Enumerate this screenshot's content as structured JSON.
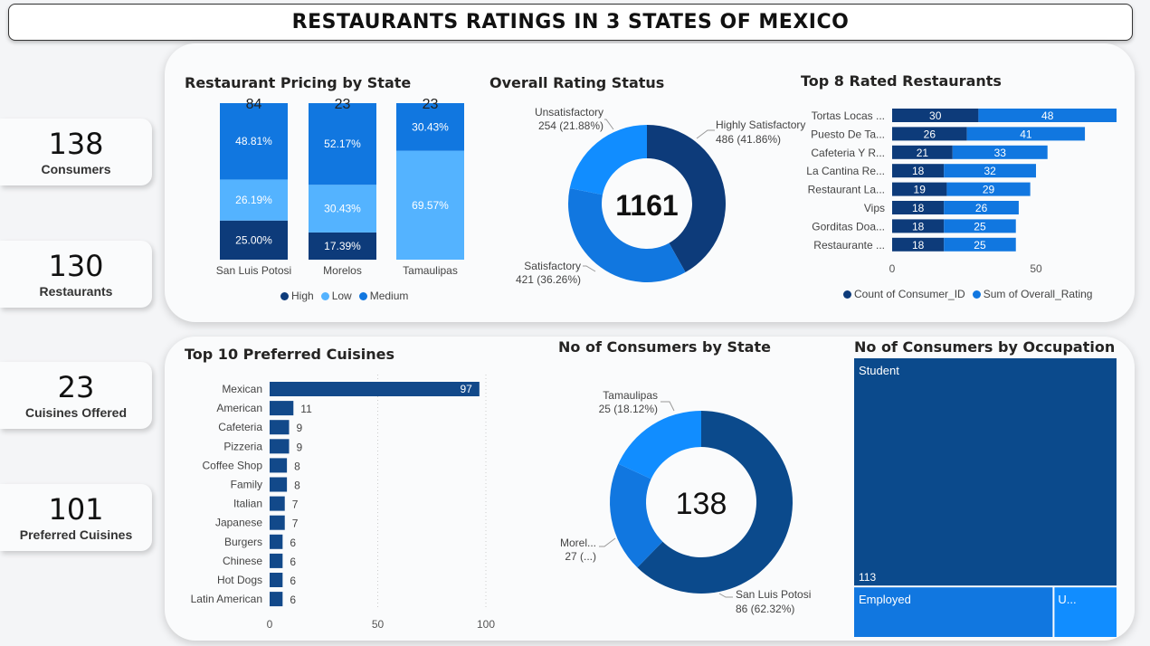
{
  "page": {
    "title": "RESTAURANTS RATINGS IN 3 STATES OF MEXICO"
  },
  "kpis": [
    {
      "value": "138",
      "label": "Consumers"
    },
    {
      "value": "130",
      "label": "Restaurants"
    },
    {
      "value": "23",
      "label": "Cuisines Offered"
    },
    {
      "value": "101",
      "label": "Preferred Cuisines"
    }
  ],
  "colors": {
    "high": "#0d3b7a",
    "low": "#54b3ff",
    "medium": "#1177e0",
    "dark": "#0b4a8c",
    "bar": "#12498a",
    "light": "#118dff"
  },
  "chart_data": [
    {
      "type": "bar",
      "title": "Restaurant Pricing by State",
      "categories": [
        "San Luis Potosi",
        "Morelos",
        "Tamaulipas"
      ],
      "totals": [
        "84",
        "23",
        "23"
      ],
      "series": [
        {
          "name": "High",
          "values": [
            25.0,
            17.39,
            0
          ],
          "labels": [
            "25.00%",
            "17.39%",
            ""
          ]
        },
        {
          "name": "Low",
          "values": [
            26.19,
            30.43,
            69.57
          ],
          "labels": [
            "26.19%",
            "30.43%",
            "69.57%"
          ]
        },
        {
          "name": "Medium",
          "values": [
            48.81,
            52.17,
            30.43
          ],
          "labels": [
            "48.81%",
            "52.17%",
            "30.43%"
          ]
        }
      ]
    },
    {
      "type": "pie",
      "title": "Overall Rating Status",
      "center_label": "1161",
      "slices": [
        {
          "name": "Highly Satisfactory",
          "value": 486,
          "label": "486 (41.86%)"
        },
        {
          "name": "Satisfactory",
          "value": 421,
          "label": "421 (36.26%)"
        },
        {
          "name": "Unsatisfactory",
          "value": 254,
          "label": "254 (21.88%)"
        }
      ]
    },
    {
      "type": "bar",
      "title": "Top 8 Rated Restaurants",
      "categories": [
        "Tortas Locas ...",
        "Puesto De Ta...",
        "Cafeteria Y R...",
        "La Cantina Re...",
        "Restaurant La...",
        "Vips",
        "Gorditas Doa...",
        "Restaurante ..."
      ],
      "series": [
        {
          "name": "Count of Consumer_ID",
          "values": [
            30,
            26,
            21,
            18,
            19,
            18,
            18,
            18
          ]
        },
        {
          "name": "Sum of Overall_Rating",
          "values": [
            48,
            41,
            33,
            32,
            29,
            26,
            25,
            25
          ]
        }
      ],
      "x_ticks": [
        "0",
        "50"
      ]
    },
    {
      "type": "bar",
      "title": "Top 10 Preferred Cuisines",
      "categories": [
        "Mexican",
        "American",
        "Cafeteria",
        "Pizzeria",
        "Coffee Shop",
        "Family",
        "Italian",
        "Japanese",
        "Burgers",
        "Chinese",
        "Hot Dogs",
        "Latin American"
      ],
      "values": [
        97,
        11,
        9,
        9,
        8,
        8,
        7,
        7,
        6,
        6,
        6,
        6
      ],
      "x_ticks": [
        "0",
        "50",
        "100"
      ],
      "xlim": [
        0,
        100
      ]
    },
    {
      "type": "pie",
      "title": "No of Consumers by State",
      "center_label": "138",
      "slices": [
        {
          "name": "San Luis Potosi",
          "value": 86,
          "label": "86 (62.32%)"
        },
        {
          "name": "Morel...",
          "value": 27,
          "label": "27 (...)"
        },
        {
          "name": "Tamaulipas",
          "value": 25,
          "label": "25 (18.12%)"
        }
      ]
    },
    {
      "type": "treemap",
      "title": "No of Consumers by Occupation",
      "items": [
        {
          "name": "Student",
          "value": 113,
          "value_label": "113"
        },
        {
          "name": "Employed",
          "value": 19
        },
        {
          "name": "U...",
          "value": 6
        }
      ]
    }
  ]
}
